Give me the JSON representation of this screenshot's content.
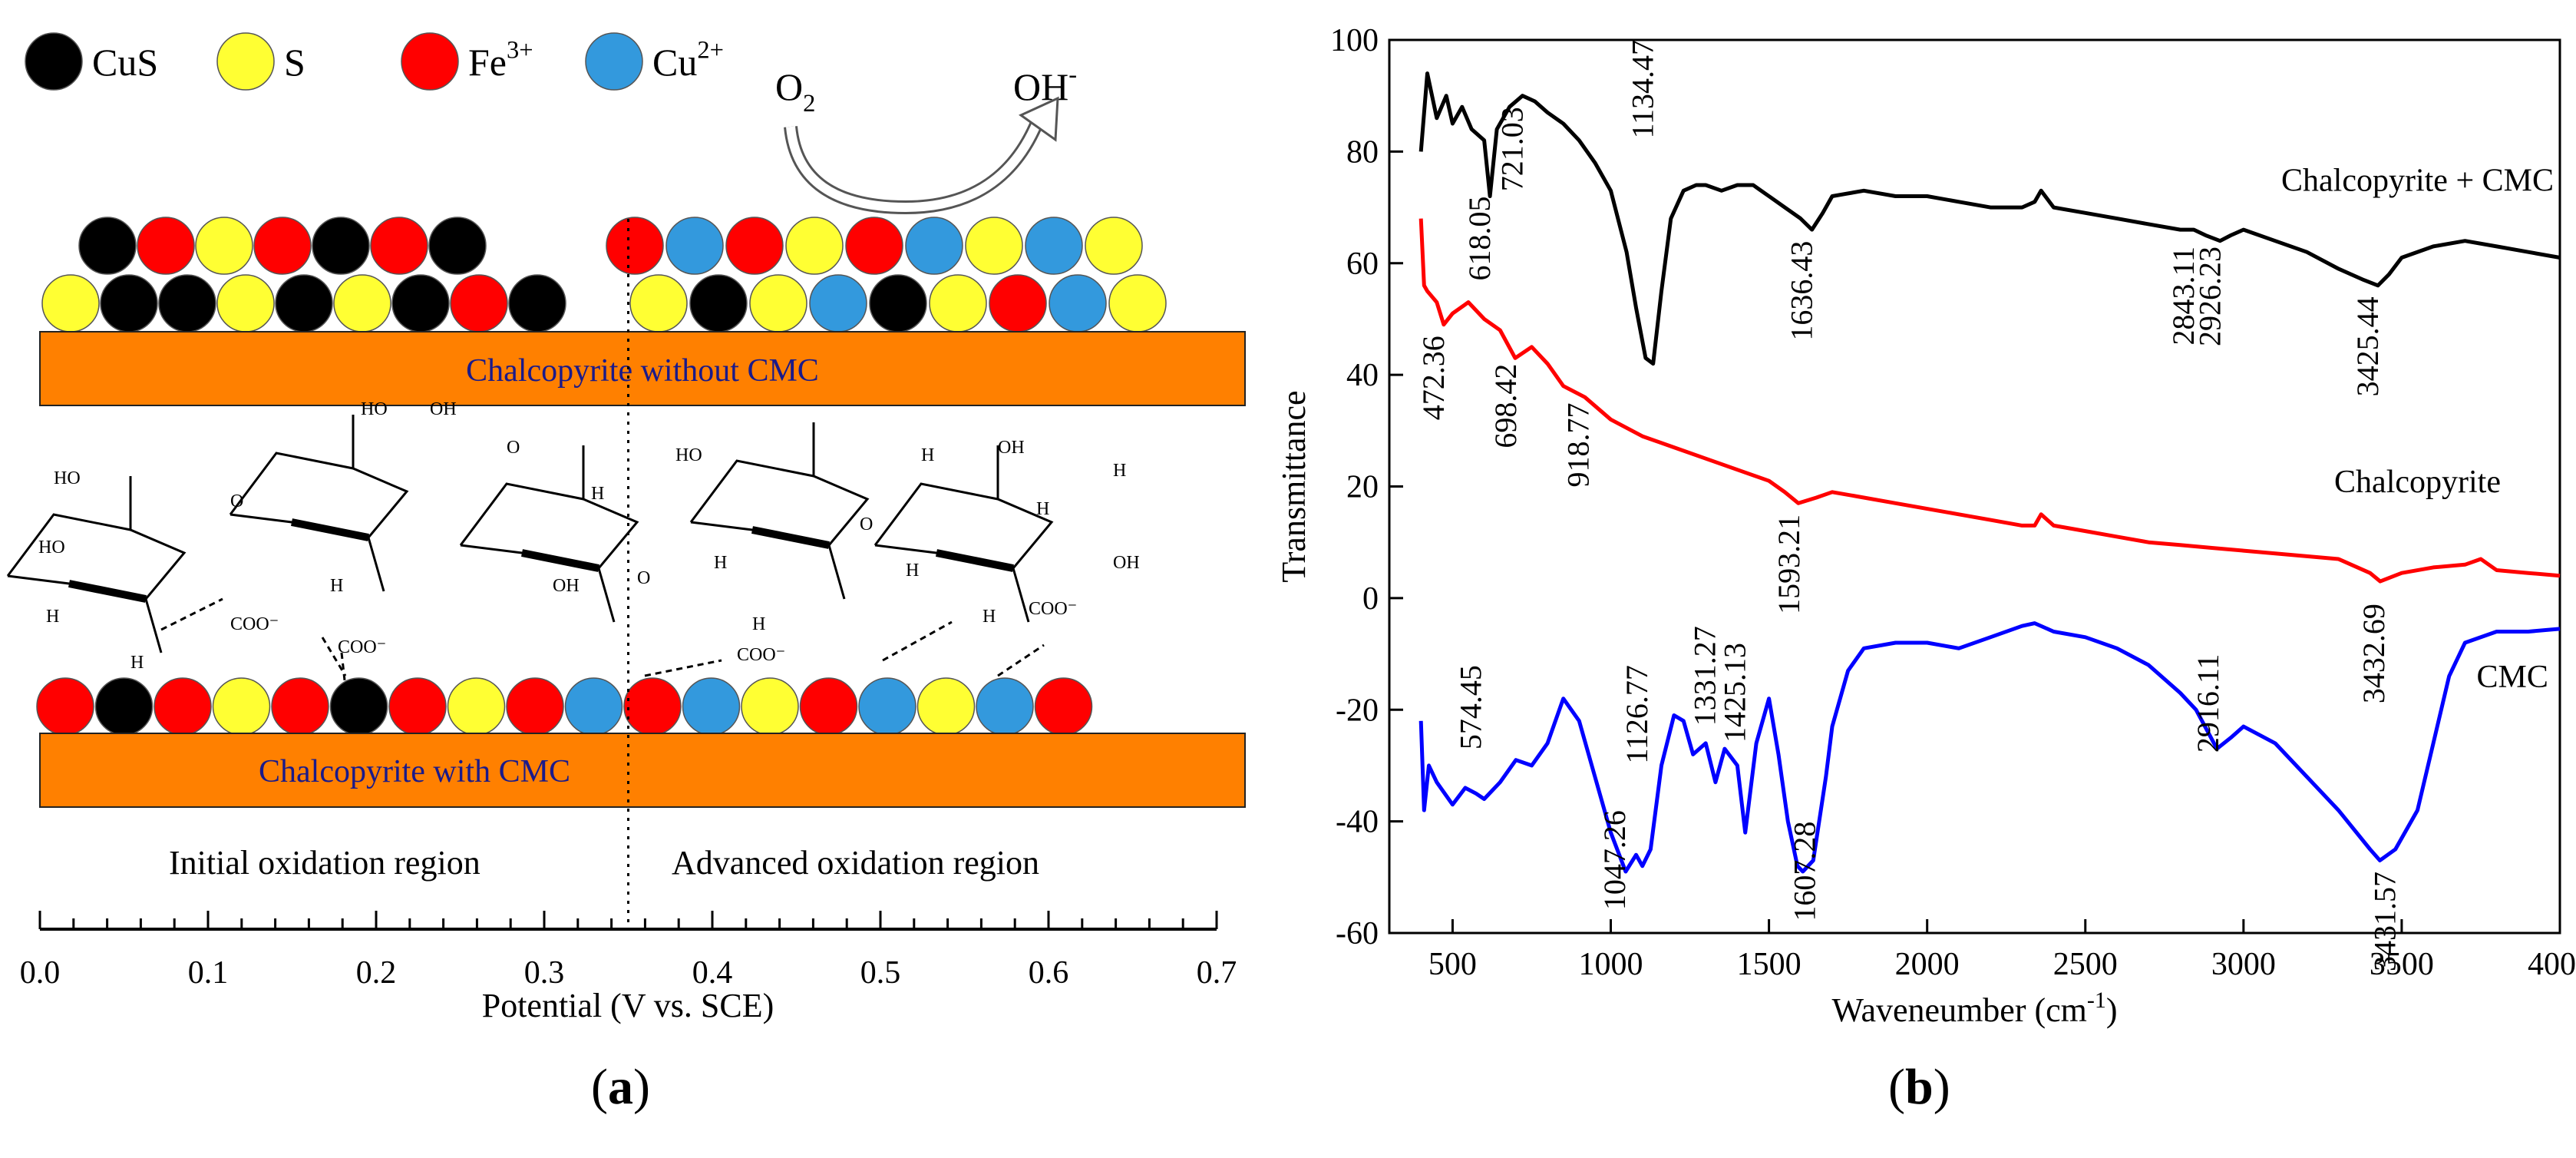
{
  "panel_a": {
    "legend": [
      {
        "name": "CuS",
        "color": "#000000"
      },
      {
        "name": "S",
        "color": "#ffff33"
      },
      {
        "name": "Fe3+",
        "base": "Fe",
        "sup": "3+",
        "color": "#ff0000"
      },
      {
        "name": "Cu2+",
        "base": "Cu",
        "sup": "2+",
        "color": "#3399dd"
      }
    ],
    "o2_base": "O",
    "o2_sub": "2",
    "oh_base": "OH",
    "oh_sup": "-",
    "top_layer_left": [
      "black",
      "red",
      "yellow",
      "red",
      "black",
      "red",
      "black"
    ],
    "bottom_layer_left": [
      "yellow",
      "black",
      "black",
      "yellow",
      "black",
      "yellow",
      "black",
      "red",
      "black"
    ],
    "top_layer_right": [
      "red",
      "blue",
      "red",
      "yellow",
      "red",
      "blue",
      "yellow",
      "blue",
      "yellow"
    ],
    "bottom_layer_right": [
      "yellow",
      "black",
      "yellow",
      "blue",
      "black",
      "yellow",
      "red",
      "blue",
      "yellow"
    ],
    "cmc_row": [
      "red",
      "black",
      "red",
      "yellow",
      "red",
      "black",
      "red",
      "yellow",
      "red",
      "blue",
      "red",
      "blue",
      "yellow",
      "red",
      "blue",
      "yellow",
      "blue",
      "red"
    ],
    "slab_top_label": "Chalcopyrite without CMC",
    "slab_bottom_label": "Chalcopyrite with CMC",
    "region_initial": "Initial oxidation region",
    "region_advanced": "Advanced oxidation region",
    "axis_label": "Potential (V vs. SCE)",
    "axis_ticks": [
      "0.0",
      "0.1",
      "0.2",
      "0.3",
      "0.4",
      "0.5",
      "0.6",
      "0.7"
    ],
    "divider_potential": 0.35,
    "mol": {
      "ho": "HO",
      "oh": "OH",
      "o": "O",
      "h": "H",
      "coo": "COO⁻"
    },
    "figure_label": "a"
  },
  "chart_data": {
    "type": "line",
    "xlabel": "Waveneumber (cm",
    "xlabel_sup": "-1",
    "xlabel_close": ")",
    "ylabel": "Transmittance",
    "xlim": [
      300,
      4000
    ],
    "ylim": [
      -60,
      100
    ],
    "xticks": [
      500,
      1000,
      1500,
      2000,
      2500,
      3000,
      3500,
      4000
    ],
    "yticks": [
      -60,
      -40,
      -20,
      0,
      20,
      40,
      60,
      80,
      100
    ],
    "series": [
      {
        "name": "Chalcopyrite + CMC",
        "color": "#000000",
        "label_at": [
          3550,
          73
        ],
        "x": [
          400,
          420,
          450,
          480,
          500,
          530,
          560,
          600,
          618,
          640,
          680,
          721,
          760,
          800,
          850,
          900,
          950,
          1000,
          1050,
          1080,
          1110,
          1134,
          1160,
          1190,
          1230,
          1270,
          1300,
          1350,
          1400,
          1450,
          1500,
          1550,
          1600,
          1636,
          1670,
          1700,
          1800,
          1900,
          2000,
          2100,
          2200,
          2300,
          2340,
          2360,
          2400,
          2500,
          2600,
          2700,
          2800,
          2843,
          2880,
          2926,
          2960,
          3000,
          3100,
          3200,
          3300,
          3380,
          3425,
          3460,
          3500,
          3600,
          3700,
          3800,
          3900,
          4000
        ],
        "y": [
          80,
          94,
          86,
          90,
          85,
          88,
          84,
          82,
          72,
          84,
          88,
          90,
          89,
          87,
          85,
          82,
          78,
          73,
          62,
          52,
          43,
          42,
          55,
          68,
          73,
          74,
          74,
          73,
          74,
          74,
          72,
          70,
          68,
          66,
          69,
          72,
          73,
          72,
          72,
          71,
          70,
          70,
          71,
          73,
          70,
          69,
          68,
          67,
          66,
          66,
          65,
          64,
          65,
          66,
          64,
          62,
          59,
          57,
          56,
          58,
          61,
          63,
          64,
          63,
          62,
          61
        ]
      },
      {
        "name": "Chalcopyrite",
        "color": "#ff0000",
        "label_at": [
          3550,
          19
        ],
        "x": [
          400,
          410,
          420,
          450,
          472,
          500,
          550,
          600,
          650,
          698,
          750,
          800,
          850,
          918,
          1000,
          1100,
          1200,
          1300,
          1400,
          1500,
          1550,
          1593,
          1650,
          1700,
          1800,
          1900,
          2000,
          2100,
          2200,
          2300,
          2340,
          2360,
          2400,
          2500,
          2600,
          2700,
          2800,
          2900,
          3000,
          3100,
          3200,
          3300,
          3400,
          3432,
          3500,
          3600,
          3700,
          3750,
          3800,
          3900,
          4000
        ],
        "y": [
          68,
          56,
          55,
          53,
          49,
          51,
          53,
          50,
          48,
          43,
          45,
          42,
          38,
          36,
          32,
          29,
          27,
          25,
          23,
          21,
          19,
          17,
          18,
          19,
          18,
          17,
          16,
          15,
          14,
          13,
          13,
          15,
          13,
          12,
          11,
          10,
          9.5,
          9,
          8.5,
          8,
          7.5,
          7,
          4.5,
          3,
          4.5,
          5.5,
          6,
          7,
          5,
          4.5,
          4
        ]
      },
      {
        "name": "CMC",
        "color": "#0000ff",
        "label_at": [
          3850,
          -16
        ],
        "x": [
          400,
          410,
          425,
          450,
          500,
          540,
          574,
          600,
          650,
          700,
          750,
          800,
          850,
          900,
          950,
          1000,
          1047,
          1080,
          1100,
          1126,
          1160,
          1200,
          1230,
          1260,
          1300,
          1331,
          1360,
          1400,
          1425,
          1460,
          1500,
          1530,
          1560,
          1590,
          1607,
          1640,
          1680,
          1700,
          1750,
          1800,
          1900,
          2000,
          2100,
          2200,
          2300,
          2340,
          2400,
          2500,
          2600,
          2700,
          2800,
          2850,
          2916,
          2960,
          3000,
          3100,
          3200,
          3300,
          3400,
          3431,
          3480,
          3550,
          3600,
          3650,
          3700,
          3800,
          3900,
          4000
        ],
        "y": [
          -22,
          -38,
          -30,
          -33,
          -37,
          -34,
          -35,
          -36,
          -33,
          -29,
          -30,
          -26,
          -18,
          -22,
          -32,
          -42,
          -49,
          -46,
          -48,
          -45,
          -30,
          -21,
          -22,
          -28,
          -26,
          -33,
          -27,
          -30,
          -42,
          -26,
          -18,
          -28,
          -40,
          -48,
          -49,
          -47,
          -32,
          -23,
          -13,
          -9,
          -8,
          -8,
          -9,
          -7,
          -5,
          -4.5,
          -6,
          -7,
          -9,
          -12,
          -17,
          -20,
          -27,
          -25,
          -23,
          -26,
          -32,
          -38,
          -45,
          -47,
          -45,
          -38,
          -26,
          -14,
          -8,
          -6,
          -6,
          -5.5
        ]
      }
    ],
    "annotations": [
      {
        "text": "472.36",
        "x": 472,
        "y": 47
      },
      {
        "text": "618.05",
        "x": 618,
        "y": 72
      },
      {
        "text": "721.03",
        "x": 721,
        "y": 88
      },
      {
        "text": "698.42",
        "x": 700,
        "y": 42
      },
      {
        "text": "918.77",
        "x": 930,
        "y": 35
      },
      {
        "text": "1134.47",
        "x": 1134,
        "y": 100
      },
      {
        "text": "1636.43",
        "x": 1636,
        "y": 64
      },
      {
        "text": "1593.21",
        "x": 1595,
        "y": 15
      },
      {
        "text": "2843.11",
        "x": 2843,
        "y": 63
      },
      {
        "text": "2926.23",
        "x": 2926,
        "y": 63
      },
      {
        "text": "3425.44",
        "x": 3425,
        "y": 54
      },
      {
        "text": "3432.69",
        "x": 3445,
        "y": -1
      },
      {
        "text": "574.45",
        "x": 590,
        "y": -12
      },
      {
        "text": "1126.77",
        "x": 1115,
        "y": -12
      },
      {
        "text": "1331.27",
        "x": 1330,
        "y": -5
      },
      {
        "text": "1425.13",
        "x": 1425,
        "y": -8
      },
      {
        "text": "1047.26",
        "x": 1045,
        "y": -38
      },
      {
        "text": "1607.28",
        "x": 1645,
        "y": -40
      },
      {
        "text": "2916.11",
        "x": 2920,
        "y": -10
      },
      {
        "text": "3431.57",
        "x": 3480,
        "y": -49
      }
    ],
    "figure_label": "b"
  }
}
